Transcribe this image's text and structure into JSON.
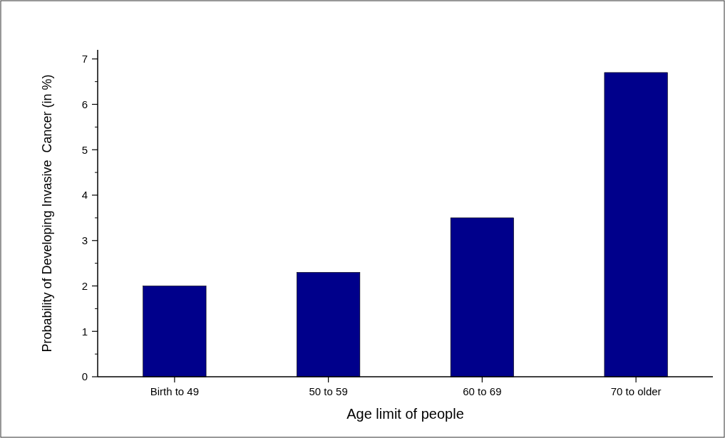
{
  "chart_data": {
    "type": "bar",
    "xlabel": "Age limit of people",
    "ylabel": "Probability of Developing Invasive  Cancer (in %)",
    "categories": [
      "Birth to 49",
      "50 to 59",
      "60 to 69",
      "70 to older"
    ],
    "values": [
      2.0,
      2.3,
      3.5,
      6.7
    ],
    "color": "#00008b",
    "ylim": [
      0,
      7.2
    ],
    "yticks": [
      0,
      1,
      2,
      3,
      4,
      5,
      6,
      7
    ],
    "grid": false
  }
}
